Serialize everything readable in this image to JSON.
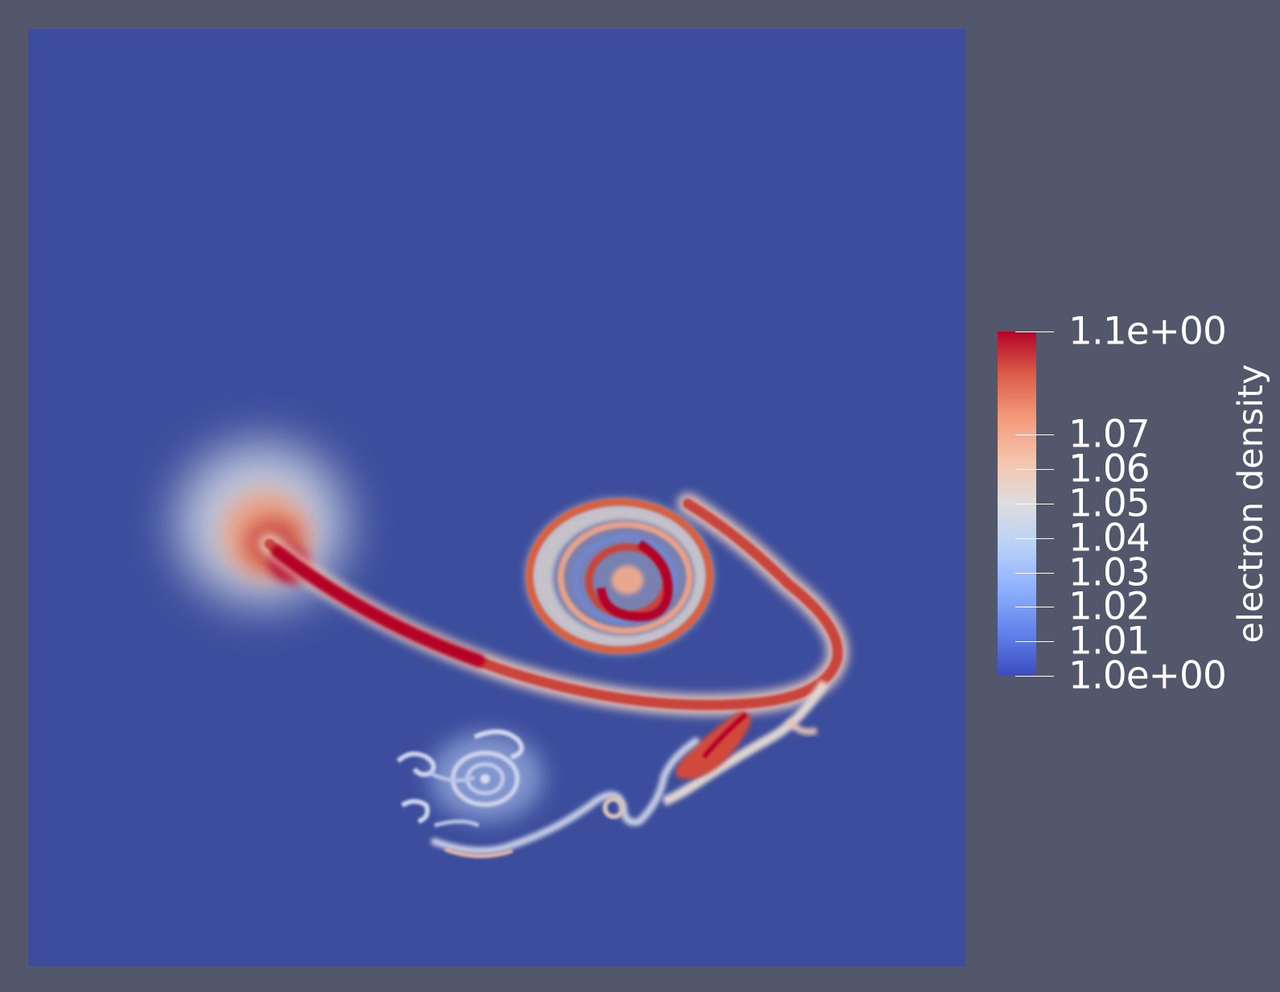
{
  "render": {
    "background_color": "#52576b",
    "field_background_color": "#3b4d9c"
  },
  "colorbar": {
    "title": "electron density",
    "colormap": "cool-to-warm",
    "range": [
      1.0,
      1.1
    ],
    "colors": {
      "low": "#3b4cc0",
      "mid": "#dddddd",
      "high": "#b40426"
    },
    "ticks": [
      {
        "value": 1.1,
        "label": "1.1e+00"
      },
      {
        "value": 1.07,
        "label": "1.07"
      },
      {
        "value": 1.06,
        "label": "1.06"
      },
      {
        "value": 1.05,
        "label": "1.05"
      },
      {
        "value": 1.04,
        "label": "1.04"
      },
      {
        "value": 1.03,
        "label": "1.03"
      },
      {
        "value": 1.02,
        "label": "1.02"
      },
      {
        "value": 1.01,
        "label": "1.01"
      },
      {
        "value": 1.0,
        "label": "1.0e+00"
      }
    ]
  }
}
